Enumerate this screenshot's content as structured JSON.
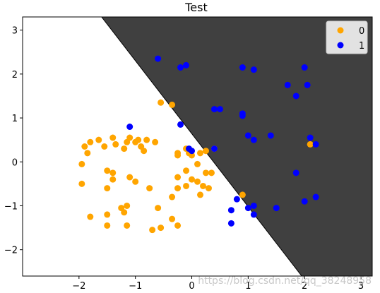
{
  "chart_data": {
    "type": "scatter",
    "title": "Test",
    "xlabel": "",
    "ylabel": "",
    "xlim": [
      -3.0,
      3.2
    ],
    "ylim": [
      -2.6,
      3.3
    ],
    "xticks": [
      -2,
      -1,
      0,
      1,
      2,
      3
    ],
    "yticks": [
      -2,
      -1,
      0,
      1,
      2,
      3
    ],
    "grid": false,
    "legend_position": "top-right",
    "decision_region": {
      "line_points": [
        [
          -1.6,
          3.3
        ],
        [
          1.95,
          -2.6
        ]
      ],
      "region_1_color": "#404040",
      "region_0_color": "#ffffff"
    },
    "series": [
      {
        "name": "0",
        "color": "#ffa500",
        "points": [
          [
            -1.9,
            0.35
          ],
          [
            -1.8,
            0.45
          ],
          [
            -1.65,
            0.5
          ],
          [
            -1.55,
            0.35
          ],
          [
            -1.4,
            0.55
          ],
          [
            -1.85,
            0.2
          ],
          [
            -1.35,
            0.4
          ],
          [
            -1.2,
            0.3
          ],
          [
            -1.1,
            0.55
          ],
          [
            -1.0,
            0.45
          ],
          [
            -0.9,
            0.35
          ],
          [
            -0.8,
            0.5
          ],
          [
            -1.15,
            0.45
          ],
          [
            -0.95,
            0.5
          ],
          [
            -0.85,
            0.25
          ],
          [
            -0.65,
            0.45
          ],
          [
            -0.55,
            1.35
          ],
          [
            -0.35,
            1.3
          ],
          [
            -1.95,
            -0.05
          ],
          [
            -1.5,
            -0.2
          ],
          [
            -1.4,
            -0.25
          ],
          [
            -1.4,
            -0.4
          ],
          [
            -1.1,
            -0.35
          ],
          [
            -1.0,
            -0.45
          ],
          [
            -0.75,
            -0.6
          ],
          [
            -1.95,
            -0.5
          ],
          [
            -1.5,
            -0.6
          ],
          [
            -1.25,
            -1.05
          ],
          [
            -1.15,
            -1.0
          ],
          [
            -0.6,
            -1.05
          ],
          [
            -1.8,
            -1.25
          ],
          [
            -1.5,
            -1.2
          ],
          [
            -1.2,
            -1.15
          ],
          [
            -1.5,
            -1.45
          ],
          [
            -1.15,
            -1.45
          ],
          [
            -0.7,
            -1.55
          ],
          [
            -0.55,
            -1.5
          ],
          [
            -0.35,
            -1.3
          ],
          [
            -0.25,
            -1.45
          ],
          [
            -0.35,
            -0.8
          ],
          [
            -0.25,
            -0.6
          ],
          [
            -0.1,
            -0.55
          ],
          [
            0.0,
            -0.4
          ],
          [
            0.1,
            -0.45
          ],
          [
            -0.25,
            -0.35
          ],
          [
            -0.1,
            -0.2
          ],
          [
            0.1,
            -0.05
          ],
          [
            0.25,
            -0.25
          ],
          [
            0.35,
            -0.25
          ],
          [
            0.2,
            -0.55
          ],
          [
            0.3,
            -0.6
          ],
          [
            0.15,
            -0.75
          ],
          [
            -0.25,
            0.15
          ],
          [
            -0.05,
            0.2
          ],
          [
            0.15,
            0.2
          ],
          [
            0.25,
            0.25
          ],
          [
            0.4,
            0.3
          ],
          [
            -0.1,
            0.3
          ],
          [
            0.0,
            0.15
          ],
          [
            0.9,
            -0.75
          ],
          [
            2.1,
            0.4
          ],
          [
            -0.25,
            0.2
          ]
        ]
      },
      {
        "name": "1",
        "color": "#0000ff",
        "points": [
          [
            -0.6,
            2.35
          ],
          [
            -0.2,
            2.15
          ],
          [
            -0.1,
            2.2
          ],
          [
            0.9,
            2.15
          ],
          [
            1.1,
            2.1
          ],
          [
            2.0,
            2.15
          ],
          [
            1.7,
            1.75
          ],
          [
            1.85,
            1.5
          ],
          [
            2.05,
            1.75
          ],
          [
            0.4,
            1.2
          ],
          [
            0.5,
            1.2
          ],
          [
            0.9,
            1.1
          ],
          [
            0.9,
            1.05
          ],
          [
            -1.1,
            0.8
          ],
          [
            -0.2,
            0.85
          ],
          [
            1.0,
            0.6
          ],
          [
            1.1,
            0.5
          ],
          [
            1.4,
            0.6
          ],
          [
            2.1,
            0.55
          ],
          [
            2.2,
            0.4
          ],
          [
            -0.05,
            0.3
          ],
          [
            0.4,
            0.3
          ],
          [
            1.85,
            -0.25
          ],
          [
            2.2,
            -0.8
          ],
          [
            2.0,
            -0.9
          ],
          [
            0.8,
            -0.85
          ],
          [
            0.7,
            -1.1
          ],
          [
            1.0,
            -1.05
          ],
          [
            1.1,
            -1.0
          ],
          [
            1.5,
            -1.05
          ],
          [
            1.1,
            -1.2
          ],
          [
            0.7,
            -1.4
          ],
          [
            0.0,
            0.25
          ]
        ]
      }
    ]
  },
  "watermark": "https://blog.csdn.net/qq_38248958"
}
